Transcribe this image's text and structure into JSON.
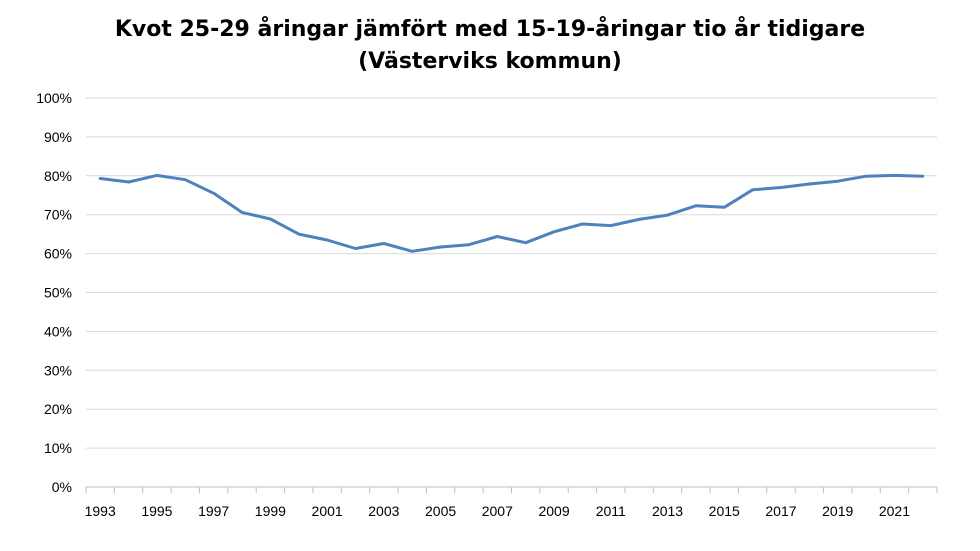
{
  "chart_data": {
    "type": "line",
    "title": "Kvot 25-29 åringar jämfört med 15-19-åringar tio år tidigare",
    "subtitle": "(Västerviks kommun)",
    "xlabel": "",
    "ylabel": "",
    "ylim": [
      0,
      100
    ],
    "y_ticks": [
      0,
      10,
      20,
      30,
      40,
      50,
      60,
      70,
      80,
      90,
      100
    ],
    "y_tick_labels": [
      "0%",
      "10%",
      "20%",
      "30%",
      "40%",
      "50%",
      "60%",
      "70%",
      "80%",
      "90%",
      "100%"
    ],
    "x_tick_labels": [
      "1993",
      "1995",
      "1997",
      "1999",
      "2001",
      "2003",
      "2005",
      "2007",
      "2009",
      "2011",
      "2013",
      "2015",
      "2017",
      "2019",
      "2021"
    ],
    "grid": true,
    "legend": "none",
    "series": [
      {
        "color": "#4f81bd",
        "x": [
          1993,
          1994,
          1995,
          1996,
          1997,
          1998,
          1999,
          2000,
          2001,
          2002,
          2003,
          2004,
          2005,
          2006,
          2007,
          2008,
          2009,
          2010,
          2011,
          2012,
          2013,
          2014,
          2015,
          2016,
          2017,
          2018,
          2019,
          2020,
          2021,
          2022
        ],
        "values": [
          79.3,
          78.4,
          80.1,
          79.0,
          75.5,
          70.6,
          68.9,
          65.0,
          63.5,
          61.3,
          62.6,
          60.6,
          61.7,
          62.3,
          64.4,
          62.8,
          65.6,
          67.6,
          67.2,
          68.8,
          69.9,
          72.3,
          71.9,
          76.4,
          77.0,
          77.9,
          78.6,
          79.9,
          80.1,
          79.9
        ]
      }
    ]
  }
}
